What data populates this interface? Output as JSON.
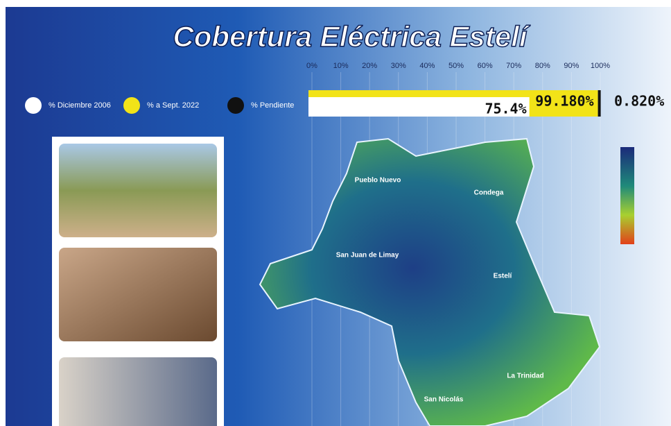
{
  "chart_data": {
    "type": "bar",
    "orientation": "horizontal",
    "title": "Cobertura Eléctrica Estelí",
    "xlim": [
      0,
      100
    ],
    "xticks": [
      {
        "value": 0,
        "label": "0%"
      },
      {
        "value": 10,
        "label": "10%"
      },
      {
        "value": 20,
        "label": "20%"
      },
      {
        "value": 30,
        "label": "30%"
      },
      {
        "value": 40,
        "label": "40%"
      },
      {
        "value": 50,
        "label": "50%"
      },
      {
        "value": 60,
        "label": "60%"
      },
      {
        "value": 70,
        "label": "70%"
      },
      {
        "value": 80,
        "label": "80%"
      },
      {
        "value": 90,
        "label": "90%"
      },
      {
        "value": 100,
        "label": "100%"
      }
    ],
    "grid": true,
    "series": [
      {
        "name": "% Diciembre 2006",
        "color": "#ffffff",
        "values": [
          75.4
        ],
        "value_labels": [
          "75.4%"
        ]
      },
      {
        "name": "% a Sept. 2022",
        "color": "#f2e318",
        "values": [
          99.18
        ],
        "value_labels": [
          "99.180%"
        ]
      },
      {
        "name": "% Pendiente",
        "color": "#111111",
        "values": [
          0.82
        ],
        "value_labels": [
          "0.820%"
        ]
      }
    ]
  },
  "map": {
    "labels": [
      "Pueblo Nuevo",
      "Condega",
      "San Juan de Limay",
      "Estelí",
      "La Trinidad",
      "San Nicolás"
    ]
  }
}
